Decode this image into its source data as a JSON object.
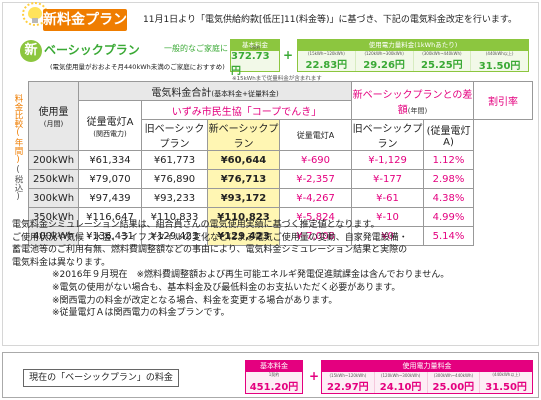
{
  "header": {
    "badge": "新料金プラン",
    "intro": "11月1日より「電気供給約款[低圧]11(料金等)」に基づき、下記の電気料金改定を行います。"
  },
  "new_plan": {
    "marker": "新",
    "name": "ベーシックプラン",
    "subtitle": "一般的なご家庭に",
    "note": "(電気使用量がおおよそ月440kWh未満のご家庭におすすめ)",
    "kwh_note": "※15kWhまで従量料金が含まれます",
    "base": {
      "header": "基本料金",
      "label": "1契約",
      "value": "372.73円"
    },
    "usage": {
      "header": "使用電力量料金(1kWhあたり)",
      "cells": [
        {
          "label": "(15kWh~120kWh)",
          "value": "22.83円"
        },
        {
          "label": "(120kWh~300kWh)",
          "value": "29.26円"
        },
        {
          "label": "(300kWh~440kWh)",
          "value": "25.25円"
        },
        {
          "label": "(440kWh以上)",
          "value": "31.50円"
        }
      ]
    }
  },
  "table": {
    "side_label": "料金比較(年間)",
    "side_sub": "(税込)",
    "group_header": "電気料金合計",
    "group_sub": "(基本料金+従量料金)",
    "col_usage": "使用量",
    "col_usage_unit": "(月間)",
    "col_kepco": "従量電灯A",
    "col_kepco_sub": "(関西電力)",
    "izumi_header": "いずみ市民生協「コープでんき」",
    "col_old": "旧ベーシックプラン",
    "col_new": "新ベーシックプラン",
    "diff_header": "新ベーシックプランとの差額",
    "diff_unit": "(年間)",
    "diff_kepco": "従量電灯A",
    "diff_old": "旧ベーシックプラン",
    "discount_header": "割引率",
    "discount_sub": "(従量電灯A)",
    "rows": [
      {
        "usage": "200kWh",
        "kepco": "¥61,334",
        "old": "¥61,773",
        "new": "¥60,644",
        "diff_kepco": "¥-690",
        "diff_old": "¥-1,129",
        "rate": "1.12%"
      },
      {
        "usage": "250kWh",
        "kepco": "¥79,070",
        "old": "¥76,890",
        "new": "¥76,713",
        "diff_kepco": "¥-2,357",
        "diff_old": "¥-177",
        "rate": "2.98%"
      },
      {
        "usage": "300kWh",
        "kepco": "¥97,439",
        "old": "¥93,233",
        "new": "¥93,172",
        "diff_kepco": "¥-4,267",
        "diff_old": "¥-61",
        "rate": "4.38%"
      },
      {
        "usage": "350kWh",
        "kepco": "¥116,647",
        "old": "¥110,833",
        "new": "¥110,823",
        "diff_kepco": "¥-5,824",
        "diff_old": "¥-10",
        "rate": "4.99%"
      },
      {
        "usage": "400kWh",
        "kepco": "¥136,431",
        "old": "¥129,423",
        "new": "¥129,423",
        "diff_kepco": "¥-7,008",
        "diff_old": "¥0",
        "rate": "5.14%"
      }
    ]
  },
  "notes": {
    "p1": "電気料金シミュレーション結果は、組合員さんの電気使用実績に基づく推定値となります。",
    "p2": "ご使用状況や気候・水温、ライフスタイルの変化などによる電気ご使用量の変動、自家発電設備・",
    "p3": "蓄電池等のご利用有無、燃料費調整額などの事由により、電気料金シミュレーション結果と実際の",
    "p4": "電気料金は異なります。",
    "n1": "※2016年９月現在　※燃料費調整額および再生可能エネルギ発電促進賦課金は含んでおりません。",
    "n2": "※電気の使用がない場合も、基本料金及び最低料金のお支払いただく必要があります。",
    "n3": "※関西電力の料金が改定となる場合、料金を変更する場合があります。",
    "n4": "※従量電灯Ａは関西電力の料金プランです。"
  },
  "current_plan": {
    "label": "現在の「ベーシックプラン」の料金",
    "base": {
      "header": "基本料金",
      "label": "1契約",
      "value": "451.20円"
    },
    "usage": {
      "header": "使用電力量料金",
      "cells": [
        {
          "label": "(15kWh~120kWh)",
          "value": "22.97円"
        },
        {
          "label": "(120kWh~300kWh)",
          "value": "24.10円"
        },
        {
          "label": "(300kWh~440kWh)",
          "value": "25.00円"
        },
        {
          "label": "(440kWh以上)",
          "value": "31.50円"
        }
      ]
    }
  },
  "colors": {
    "orange": "#ef7d00",
    "green": "#8cc63f",
    "pink": "#e4007f",
    "yellow": "#fff6b3"
  },
  "icons": {
    "bulb": "light-bulb-icon"
  }
}
